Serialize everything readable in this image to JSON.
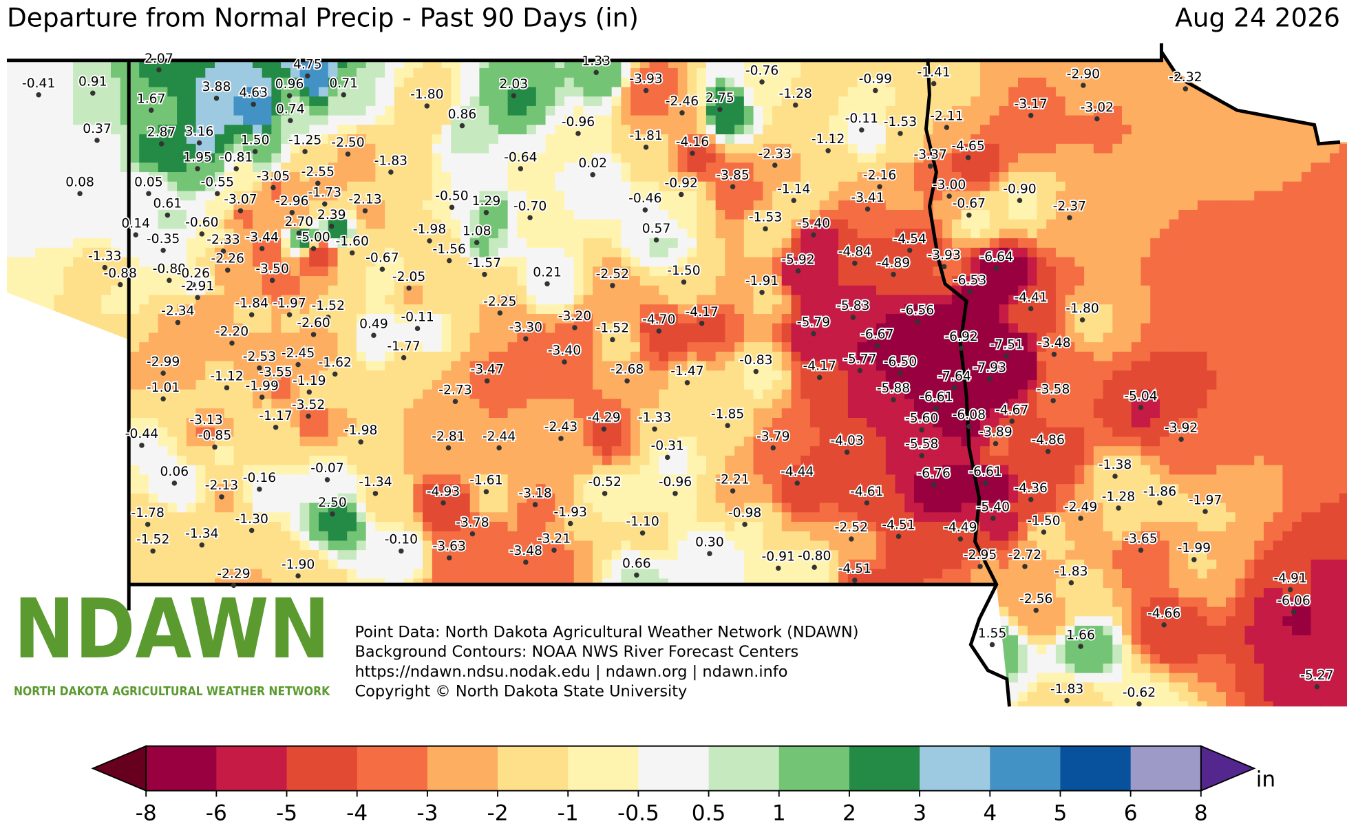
{
  "header": {
    "title": "Departure from Normal Precip - Past 90 Days (in)",
    "date": "Aug 24 2026"
  },
  "stations": [
    "-0.41",
    "0.91",
    "2.07",
    "1.67",
    "3.88",
    "4.63",
    "4.75",
    "0.96",
    "0.71",
    "0.74",
    "0.37",
    "2.87",
    "3.16",
    "1.50",
    "-1.25",
    "-2.50",
    "1.95",
    "-0.81",
    "0.08",
    "0.05",
    "-0.55",
    "-3.05",
    "-2.55",
    "-1.73",
    "-3.07",
    "-2.96",
    "-2.13",
    "0.61",
    "-0.60",
    "0.14",
    "2.70",
    "2.39",
    "-0.35",
    "-2.33",
    "-3.44",
    "-5.00",
    "-1.60",
    "-1.33",
    "-2.26",
    "-0.88",
    "-0.80",
    "-0.26",
    "-3.50",
    "-2.91",
    "-2.34",
    "-1.84",
    "-1.97",
    "-1.52",
    "-2.60",
    "-2.20",
    "-0.67",
    "-2.05",
    "0.49",
    "-0.11",
    "-1.77",
    "-2.99",
    "-1.12",
    "-2.53",
    "-2.45",
    "-1.62",
    "-3.55",
    "-1.19",
    "-1.99",
    "-1.01",
    "-3.52",
    "-1.17",
    "-3.13",
    "-0.85",
    "-0.44",
    "-1.98",
    "0.06",
    "-2.13",
    "-0.16",
    "-0.07",
    "-1.34",
    "2.50",
    "-1.78",
    "-1.30",
    "-1.52",
    "-1.34",
    "-0.10",
    "-1.90",
    "-2.29",
    "-1.80",
    "0.86",
    "2.03",
    "1.33",
    "-0.64",
    "-0.50",
    "1.29",
    "-0.70",
    "-1.83",
    "-1.98",
    "1.08",
    "-1.56",
    "-1.57",
    "-2.25",
    "-3.30",
    "0.21",
    "-2.52",
    "-3.20",
    "-1.52",
    "-4.70",
    "-1.50",
    "-4.17",
    "-3.40",
    "-3.47",
    "-2.73",
    "-2.68",
    "-1.47",
    "-0.83",
    "-4.29",
    "-1.33",
    "-1.85",
    "-0.31",
    "-2.81",
    "-2.44",
    "-2.43",
    "-3.79",
    "-4.93",
    "-1.61",
    "-3.18",
    "-0.52",
    "-0.96",
    "-2.21",
    "-1.93",
    "-3.78",
    "-3.21",
    "-3.48",
    "-3.63",
    "-1.10",
    "-0.98",
    "0.30",
    "0.66",
    "-0.91",
    "-0.80",
    "-4.51",
    "-3.93",
    "-2.46",
    "2.75",
    "-0.96",
    "-1.81",
    "-4.16",
    "0.02",
    "-0.76",
    "-1.28",
    "-2.33",
    "-3.85",
    "-0.92",
    "-0.46",
    "0.57",
    "-1.14",
    "-1.53",
    "-5.40",
    "-1.12",
    "-0.99",
    "-0.11",
    "-1.53",
    "-2.16",
    "-3.41",
    "-1.41",
    "-2.11",
    "-3.37",
    "-4.65",
    "-3.00",
    "-0.67",
    "-0.90",
    "-4.54",
    "-3.93",
    "-4.84",
    "-4.89",
    "-5.92",
    "-1.91",
    "-6.64",
    "-6.53",
    "-4.41",
    "-1.80",
    "-5.83",
    "-6.56",
    "-5.79",
    "-6.67",
    "-6.92",
    "-7.51",
    "-3.48",
    "-4.17",
    "-5.77",
    "-6.50",
    "-7.64",
    "-7.93",
    "-5.88",
    "-6.61",
    "-3.58",
    "-4.67",
    "-6.08",
    "-5.60",
    "-3.89",
    "-4.03",
    "-5.58",
    "-4.86",
    "-4.44",
    "-6.76",
    "-6.61",
    "-4.61",
    "-5.40",
    "-4.36",
    "-2.52",
    "-4.51",
    "-4.49",
    "-2.95",
    "-2.72",
    "-1.50",
    "-2.49",
    "-1.28",
    "-1.86",
    "-1.97",
    "-1.38",
    "-5.04",
    "-3.92",
    "-3.65",
    "-1.99",
    "-1.83",
    "-2.56",
    "-4.66",
    "-4.91",
    "-6.06",
    "1.55",
    "1.66",
    "-1.83",
    "-0.62",
    "-5.27",
    "-2.90",
    "-2.32",
    "-3.17",
    "-3.02",
    "-2.37"
  ],
  "logo": {
    "name": "NDAWN",
    "subtitle": "NORTH DAKOTA AGRICULTURAL WEATHER NETWORK"
  },
  "credits": [
    "Point Data: North Dakota Agricultural Weather Network (NDAWN)",
    "Background Contours: NOAA NWS River Forecast Centers",
    "https://ndawn.ndsu.nodak.edu | ndawn.org | ndawn.info",
    "Copyright © North Dakota State University"
  ],
  "colorbar": {
    "ticks": [
      -8,
      -6,
      -5,
      -4,
      -3,
      -2,
      -1,
      -0.5,
      0.5,
      1,
      2,
      3,
      4,
      5,
      6,
      8
    ],
    "colors": [
      "#99003f",
      "#c51b45",
      "#e34a33",
      "#f46d43",
      "#fdae61",
      "#fee08b",
      "#fff3b0",
      "#f5f5f5",
      "#c7e9c0",
      "#74c476",
      "#238b45",
      "#9ecae1",
      "#4292c6",
      "#08519c",
      "#9e9ac8"
    ],
    "under_color": "#67001f",
    "over_color": "#54278f",
    "unit": "in"
  }
}
